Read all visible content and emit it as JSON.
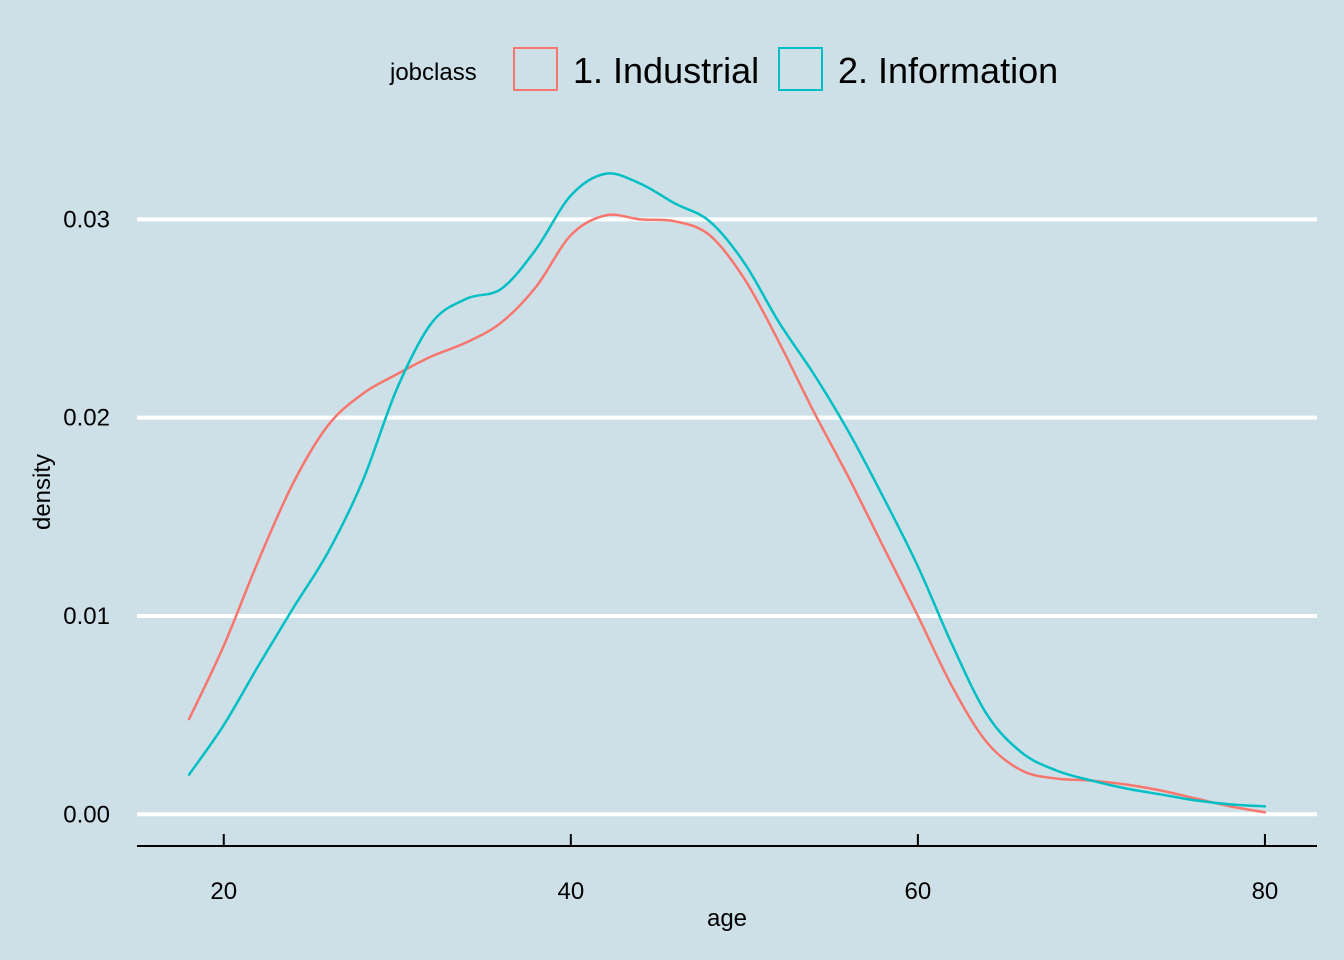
{
  "chart_data": {
    "type": "line",
    "title": "",
    "xlabel": "age",
    "ylabel": "density",
    "xlim": [
      15,
      83
    ],
    "ylim": [
      -0.0016,
      0.034
    ],
    "xticks": [
      20,
      40,
      60,
      80
    ],
    "yticks": [
      0.0,
      0.01,
      0.02,
      0.03
    ],
    "ytick_labels": [
      "0.00",
      "0.01",
      "0.02",
      "0.03"
    ],
    "grid": "horizontal-major",
    "legend": {
      "title": "jobclass",
      "placement": "top"
    },
    "series": [
      {
        "name": "1. Industrial",
        "color": "#f8766d",
        "x": [
          18,
          20,
          22,
          24,
          26,
          28,
          30,
          32,
          34,
          36,
          38,
          40,
          42,
          44,
          46,
          48,
          50,
          52,
          54,
          56,
          58,
          60,
          62,
          64,
          66,
          68,
          70,
          72,
          74,
          76,
          78,
          80
        ],
        "y": [
          0.0048,
          0.0085,
          0.0128,
          0.0167,
          0.0196,
          0.0212,
          0.0222,
          0.0231,
          0.0238,
          0.0248,
          0.0266,
          0.0292,
          0.0302,
          0.03,
          0.0299,
          0.0292,
          0.027,
          0.0238,
          0.0203,
          0.017,
          0.0135,
          0.01,
          0.0064,
          0.0036,
          0.0022,
          0.0018,
          0.0017,
          0.0015,
          0.0012,
          0.0008,
          0.0004,
          0.0001
        ]
      },
      {
        "name": "2. Information",
        "color": "#00bfc4",
        "x": [
          18,
          20,
          22,
          24,
          26,
          28,
          30,
          32,
          34,
          36,
          38,
          40,
          42,
          44,
          46,
          48,
          50,
          52,
          54,
          56,
          58,
          60,
          62,
          64,
          66,
          68,
          70,
          72,
          74,
          76,
          78,
          80
        ],
        "y": [
          0.002,
          0.0045,
          0.0075,
          0.0104,
          0.0132,
          0.0168,
          0.0215,
          0.0248,
          0.026,
          0.0265,
          0.0285,
          0.0312,
          0.0323,
          0.0318,
          0.0308,
          0.0299,
          0.0278,
          0.0248,
          0.0222,
          0.0193,
          0.016,
          0.0125,
          0.0085,
          0.005,
          0.0031,
          0.0022,
          0.0017,
          0.0013,
          0.001,
          0.0007,
          0.0005,
          0.0004
        ]
      }
    ]
  }
}
